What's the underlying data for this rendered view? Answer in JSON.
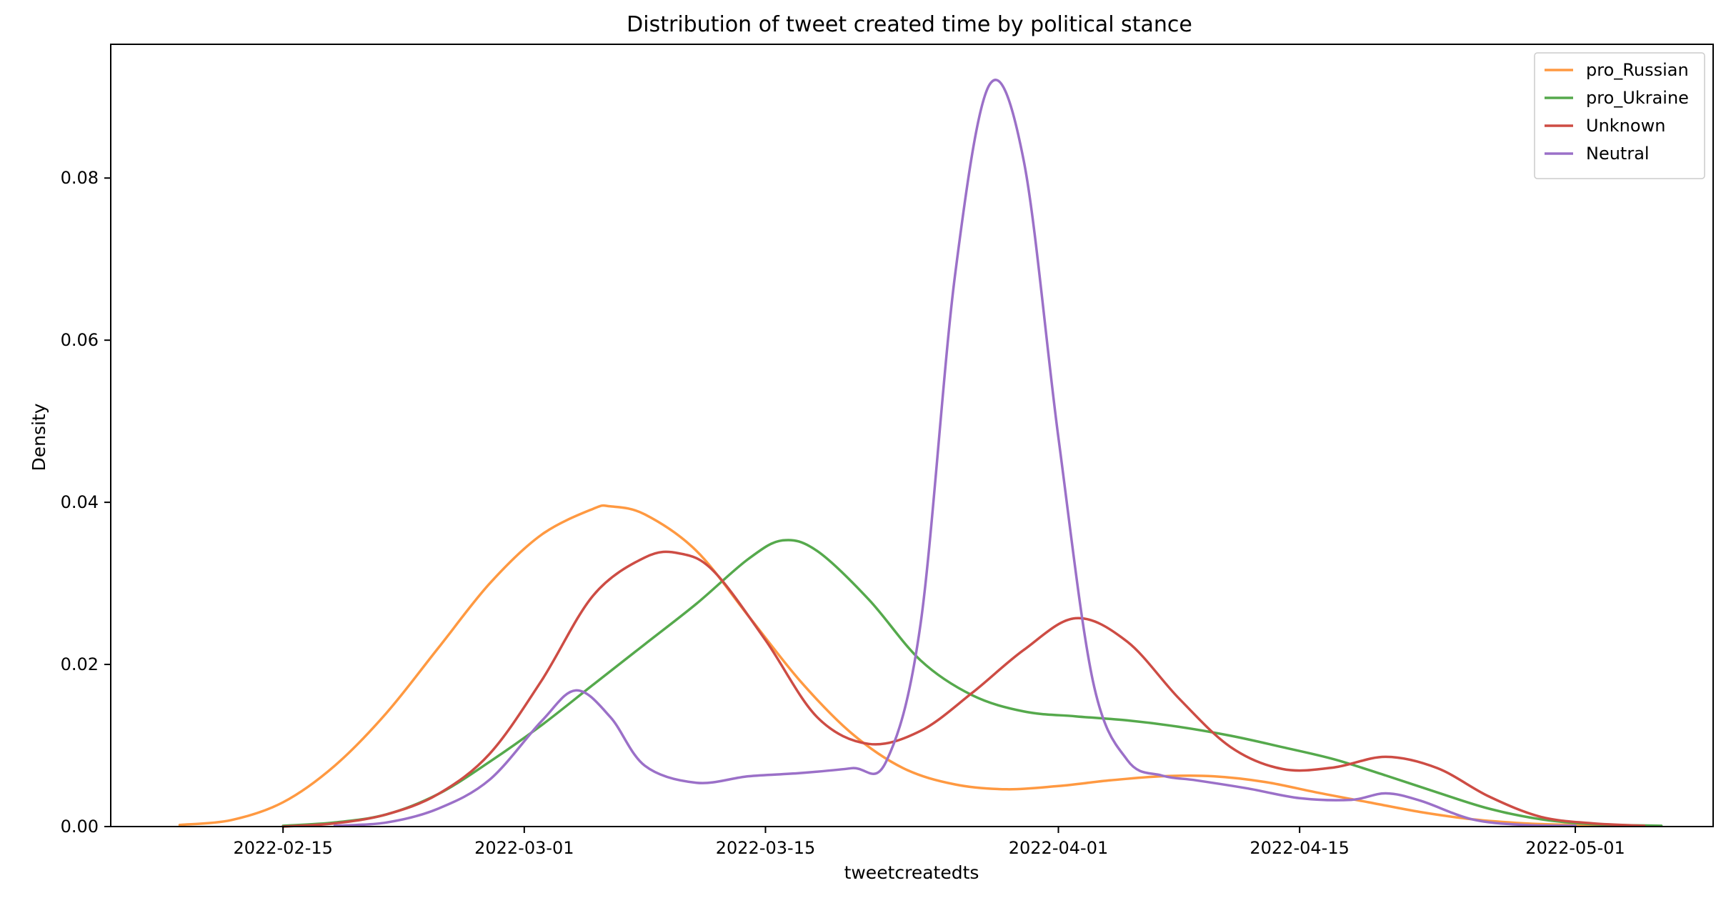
{
  "chart_data": {
    "type": "line",
    "title": "Distribution of tweet created time by political stance",
    "xlabel": "tweetcreatedts",
    "ylabel": "Density",
    "x_ticks": [
      "2022-02-15",
      "2022-03-01",
      "2022-03-15",
      "2022-04-01",
      "2022-04-15",
      "2022-05-01"
    ],
    "y_ticks": [
      "0.00",
      "0.02",
      "0.04",
      "0.06",
      "0.08"
    ],
    "xlim": [
      "2022-02-05",
      "2022-05-09"
    ],
    "ylim": [
      0,
      0.0965
    ],
    "grid": false,
    "legend_position": "top-right",
    "series": [
      {
        "name": "pro_Russian",
        "color": "#ff9941",
        "x": [
          "2022-02-09",
          "2022-02-12",
          "2022-02-15",
          "2022-02-18",
          "2022-02-21",
          "2022-02-24",
          "2022-02-27",
          "2022-03-02",
          "2022-03-05",
          "2022-03-06",
          "2022-03-08",
          "2022-03-11",
          "2022-03-14",
          "2022-03-17",
          "2022-03-20",
          "2022-03-23",
          "2022-03-26",
          "2022-03-29",
          "2022-04-01",
          "2022-04-04",
          "2022-04-07",
          "2022-04-10",
          "2022-04-13",
          "2022-04-16",
          "2022-04-19",
          "2022-04-22",
          "2022-04-25",
          "2022-04-28",
          "2022-05-01",
          "2022-05-04"
        ],
        "y": [
          0.0002,
          0.0008,
          0.003,
          0.0075,
          0.014,
          0.022,
          0.03,
          0.036,
          0.0392,
          0.0395,
          0.0385,
          0.034,
          0.026,
          0.018,
          0.0115,
          0.0072,
          0.0052,
          0.0046,
          0.005,
          0.0057,
          0.0062,
          0.0062,
          0.0055,
          0.0042,
          0.003,
          0.0018,
          0.0009,
          0.0004,
          0.0002,
          0.0001
        ]
      },
      {
        "name": "pro_Ukraine",
        "color": "#55a94c",
        "x": [
          "2022-02-15",
          "2022-02-18",
          "2022-02-21",
          "2022-02-24",
          "2022-02-27",
          "2022-03-02",
          "2022-03-05",
          "2022-03-08",
          "2022-03-11",
          "2022-03-14",
          "2022-03-16",
          "2022-03-18",
          "2022-03-21",
          "2022-03-24",
          "2022-03-27",
          "2022-03-30",
          "2022-04-02",
          "2022-04-05",
          "2022-04-08",
          "2022-04-11",
          "2022-04-14",
          "2022-04-17",
          "2022-04-20",
          "2022-04-23",
          "2022-04-26",
          "2022-04-29",
          "2022-05-02",
          "2022-05-06"
        ],
        "y": [
          0.0001,
          0.0005,
          0.0015,
          0.004,
          0.008,
          0.0125,
          0.0175,
          0.0225,
          0.0275,
          0.033,
          0.0353,
          0.034,
          0.028,
          0.0205,
          0.0162,
          0.0142,
          0.0136,
          0.0131,
          0.0123,
          0.0112,
          0.0098,
          0.0083,
          0.0063,
          0.0042,
          0.0022,
          0.0009,
          0.0003,
          0.0001
        ]
      },
      {
        "name": "Unknown",
        "color": "#cd4c44",
        "x": [
          "2022-02-15",
          "2022-02-18",
          "2022-02-21",
          "2022-02-24",
          "2022-02-27",
          "2022-03-02",
          "2022-03-05",
          "2022-03-08",
          "2022-03-10",
          "2022-03-12",
          "2022-03-15",
          "2022-03-18",
          "2022-03-21",
          "2022-03-24",
          "2022-03-27",
          "2022-03-30",
          "2022-04-02",
          "2022-04-05",
          "2022-04-08",
          "2022-04-11",
          "2022-04-14",
          "2022-04-17",
          "2022-04-20",
          "2022-04-23",
          "2022-04-26",
          "2022-04-29",
          "2022-05-02",
          "2022-05-05"
        ],
        "y": [
          0.0,
          0.0004,
          0.0015,
          0.004,
          0.009,
          0.018,
          0.0285,
          0.0332,
          0.0337,
          0.0315,
          0.023,
          0.0135,
          0.0102,
          0.0118,
          0.0165,
          0.0218,
          0.0257,
          0.0228,
          0.0158,
          0.0098,
          0.0071,
          0.0073,
          0.0086,
          0.0072,
          0.0037,
          0.0012,
          0.0004,
          0.0001
        ]
      },
      {
        "name": "Neutral",
        "color": "#9b70c8",
        "x": [
          "2022-02-18",
          "2022-02-21",
          "2022-02-24",
          "2022-02-27",
          "2022-03-02",
          "2022-03-04",
          "2022-03-06",
          "2022-03-08",
          "2022-03-11",
          "2022-03-14",
          "2022-03-17",
          "2022-03-20",
          "2022-03-22",
          "2022-03-24",
          "2022-03-26",
          "2022-03-28",
          "2022-03-30",
          "2022-04-01",
          "2022-04-03",
          "2022-04-05",
          "2022-04-07",
          "2022-04-09",
          "2022-04-12",
          "2022-04-15",
          "2022-04-18",
          "2022-04-20",
          "2022-04-22",
          "2022-04-25",
          "2022-04-28",
          "2022-05-01"
        ],
        "y": [
          0.0001,
          0.0005,
          0.0022,
          0.0058,
          0.013,
          0.0168,
          0.0135,
          0.0075,
          0.0054,
          0.0062,
          0.0066,
          0.0072,
          0.008,
          0.025,
          0.068,
          0.0915,
          0.082,
          0.048,
          0.018,
          0.0082,
          0.0063,
          0.0057,
          0.0047,
          0.0035,
          0.0033,
          0.0041,
          0.0032,
          0.0009,
          0.0002,
          0.0001
        ]
      }
    ]
  }
}
